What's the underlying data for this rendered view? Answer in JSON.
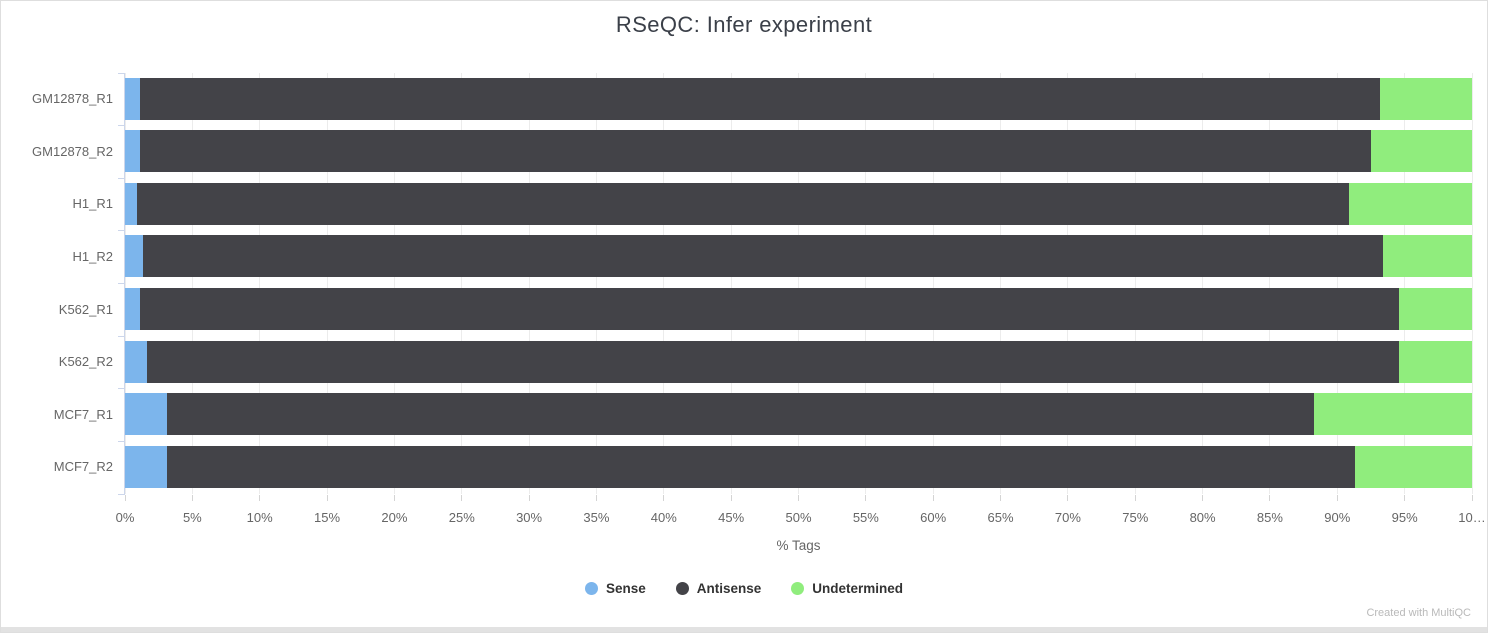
{
  "chart_data": {
    "type": "bar",
    "orientation": "horizontal",
    "stacked": true,
    "title": "RSeQC: Infer experiment",
    "xlabel": "% Tags",
    "xlim": [
      0,
      100
    ],
    "grid": true,
    "legend_position": "bottom",
    "categories": [
      "GM12878_R1",
      "GM12878_R2",
      "H1_R1",
      "H1_R2",
      "K562_R1",
      "K562_R2",
      "MCF7_R1",
      "MCF7_R2"
    ],
    "series": [
      {
        "name": "Sense",
        "color": "#7cb5ec",
        "values": [
          1.1,
          1.1,
          0.9,
          1.3,
          1.1,
          1.6,
          3.1,
          3.1
        ]
      },
      {
        "name": "Antisense",
        "color": "#434348",
        "values": [
          92.1,
          91.4,
          90.0,
          92.1,
          93.5,
          93.0,
          85.2,
          88.2
        ]
      },
      {
        "name": "Undetermined",
        "color": "#90ed7d",
        "values": [
          6.8,
          7.5,
          9.1,
          6.6,
          5.4,
          5.4,
          11.7,
          8.7
        ]
      }
    ],
    "x_tick_labels": [
      "0%",
      "5%",
      "10%",
      "15%",
      "20%",
      "25%",
      "30%",
      "35%",
      "40%",
      "45%",
      "50%",
      "55%",
      "60%",
      "65%",
      "70%",
      "75%",
      "80%",
      "85%",
      "90%",
      "95%",
      "10…"
    ],
    "x_tick_step": 5
  },
  "footer": {
    "credit": "Created with MultiQC"
  },
  "colors": {
    "axis_line": "#ccd6eb",
    "gridline": "#ececec",
    "tick": "#d4d4d4"
  }
}
